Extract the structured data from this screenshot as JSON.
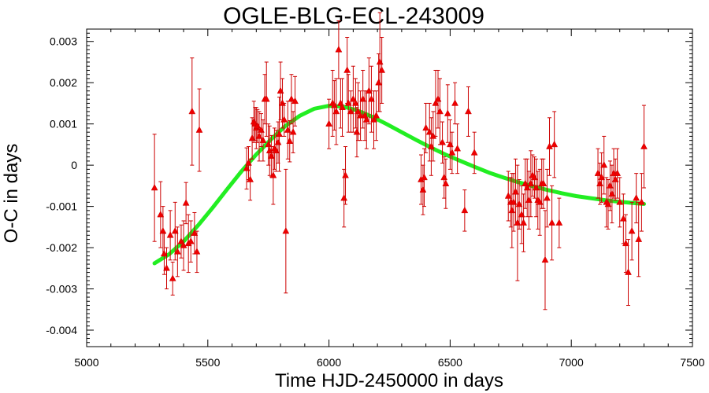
{
  "chart_data": {
    "type": "scatter",
    "title": "OGLE-BLG-ECL-243009",
    "xlabel": "Time HJD-2450000 in days",
    "ylabel": "O-C in days",
    "xlim": [
      5000,
      7500
    ],
    "ylim": [
      -0.0044,
      0.0033
    ],
    "x_ticks": [
      5000,
      5500,
      6000,
      6500,
      7000,
      7500
    ],
    "x_tick_labels": [
      "5000",
      "5500",
      "6000",
      "6500",
      "7000",
      "7500"
    ],
    "y_ticks": [
      0.003,
      0.002,
      0.001,
      0,
      -0.001,
      -0.002,
      -0.003,
      -0.004
    ],
    "y_tick_labels": [
      "0.003",
      "0.002",
      "0.001",
      "0",
      "-0.001",
      "-0.002",
      "-0.003",
      "-0.004"
    ],
    "grid": false,
    "colors": {
      "points": "#ee0000",
      "errorbars": "#cc0000",
      "fit": "#22ee22"
    },
    "series": [
      {
        "type": "scatter_with_errorbars",
        "x": [
          5280,
          5305,
          5315,
          5320,
          5330,
          5345,
          5355,
          5365,
          5375,
          5390,
          5400,
          5410,
          5420,
          5430,
          5435,
          5445,
          5455,
          5465,
          5660,
          5668,
          5675,
          5683,
          5690,
          5695,
          5700,
          5705,
          5712,
          5720,
          5728,
          5735,
          5742,
          5750,
          5755,
          5762,
          5770,
          5775,
          5782,
          5790,
          5795,
          5800,
          5808,
          5815,
          5822,
          5830,
          5838,
          5845,
          5852,
          5860,
          6000,
          6015,
          6022,
          6030,
          6040,
          6048,
          6055,
          6062,
          6068,
          6075,
          6080,
          6090,
          6100,
          6110,
          6115,
          6120,
          6130,
          6140,
          6148,
          6155,
          6165,
          6175,
          6185,
          6195,
          6205,
          6210,
          6218,
          6380,
          6388,
          6393,
          6400,
          6415,
          6422,
          6430,
          6440,
          6450,
          6458,
          6468,
          6475,
          6482,
          6490,
          6500,
          6508,
          6520,
          6530,
          6560,
          6575,
          6600,
          6740,
          6750,
          6755,
          6762,
          6770,
          6778,
          6785,
          6795,
          6803,
          6810,
          6818,
          6825,
          6833,
          6840,
          6848,
          6855,
          6862,
          6870,
          6878,
          6885,
          6892,
          6900,
          6910,
          6920,
          6930,
          6950,
          7110,
          7118,
          7125,
          7135,
          7145,
          7152,
          7160,
          7168,
          7175,
          7182,
          7190,
          7200,
          7215,
          7225,
          7235,
          7250,
          7268,
          7278,
          7290,
          7300
        ],
        "y": [
          -0.00055,
          -0.0012,
          -0.0016,
          -0.00215,
          -0.0025,
          -0.0017,
          -0.00275,
          -0.0016,
          -0.0021,
          -0.00185,
          -0.00195,
          -0.00092,
          -0.0019,
          -0.00185,
          0.0013,
          -0.00165,
          -0.0021,
          0.00085,
          -8e-05,
          5e-05,
          -0.00035,
          0.00065,
          0.00105,
          0.001,
          0.0009,
          0.00095,
          0.0007,
          0.00085,
          0.0006,
          0.0016,
          0.0016,
          0.0005,
          0.00035,
          0.00022,
          -0.00025,
          0.0004,
          0.00035,
          0.00055,
          0.00075,
          0.0018,
          0.0015,
          0.0011,
          -0.0016,
          0.00085,
          0.00058,
          0.0016,
          0.0008,
          0.00155,
          0.001,
          0.0015,
          0.00145,
          0.0013,
          0.0028,
          0.0015,
          0.0014,
          -0.0008,
          -0.00025,
          0.0023,
          0.0015,
          0.0013,
          0.0016,
          0.0015,
          0.0008,
          0.0013,
          0.0012,
          0.0016,
          0.0012,
          0.0011,
          0.0018,
          0.0016,
          0.0011,
          0.0012,
          0.002,
          0.0025,
          0.0023,
          -0.00035,
          -0.0006,
          -0.0003,
          0.0009,
          0.0008,
          0.00045,
          0.0007,
          0.0015,
          0.0016,
          0.0013,
          0.00055,
          -0.0003,
          -0.00045,
          0.00125,
          0.0005,
          0.0003,
          0.0015,
          0.0004,
          -0.0011,
          0.0013,
          0.0003,
          -0.00075,
          -0.0009,
          -0.0011,
          -0.0009,
          -0.00065,
          -0.0014,
          -0.00095,
          -0.0012,
          -0.0014,
          -0.00045,
          -0.00055,
          -0.00085,
          -0.00045,
          -0.00025,
          -0.0003,
          -0.00055,
          -0.00085,
          -0.0009,
          -0.00045,
          -0.00045,
          -0.0023,
          -0.0008,
          0.00045,
          -0.0014,
          0.0005,
          -0.0014,
          -0.0002,
          -0.00045,
          -0.0003,
          0,
          -0.0009,
          -0.00095,
          -0.0005,
          -0.0007,
          -0.0002,
          -0.00035,
          -0.0002,
          -0.0009,
          -0.0013,
          -0.0019,
          -0.0026,
          -0.0016,
          -0.0008,
          -0.0018,
          -0.0009,
          0.00045
        ],
        "err": [
          0.0013,
          0.0008,
          0.0006,
          0.0005,
          0.0005,
          0.0006,
          0.0004,
          0.0007,
          0.0006,
          0.0004,
          0.0006,
          0.0005,
          0.0007,
          0.0005,
          0.0013,
          0.0005,
          0.0005,
          0.001,
          0.0005,
          0.0004,
          0.0005,
          0.0005,
          0.0005,
          0.0004,
          0.0005,
          0.0004,
          0.0006,
          0.0004,
          0.0005,
          0.0006,
          0.0009,
          0.0005,
          0.0006,
          0.0005,
          0.0007,
          0.0005,
          0.0005,
          0.0005,
          0.0009,
          0.0007,
          0.0006,
          0.0004,
          0.0015,
          0.0007,
          0.0005,
          0.0006,
          0.0005,
          0.0006,
          0.0006,
          0.0008,
          0.0006,
          0.0008,
          0.0007,
          0.0006,
          0.0007,
          0.0007,
          0.0007,
          0.0008,
          0.0007,
          0.0005,
          0.0008,
          0.0006,
          0.0006,
          0.0007,
          0.0006,
          0.0007,
          0.0006,
          0.0007,
          0.0008,
          0.0008,
          0.0007,
          0.0006,
          0.0007,
          0.0012,
          0.0008,
          0.0006,
          0.0006,
          0.0007,
          0.0006,
          0.0007,
          0.0007,
          0.0006,
          0.0008,
          0.0007,
          0.0008,
          0.0005,
          0.0005,
          0.0006,
          0.0007,
          0.0006,
          0.0005,
          0.0005,
          0.0006,
          0.0005,
          0.0006,
          0.0005,
          0.0006,
          0.0006,
          0.0009,
          0.0007,
          0.0008,
          0.0014,
          0.0006,
          0.0007,
          0.0007,
          0.0006,
          0.0007,
          0.0007,
          0.0008,
          0.0005,
          0.0005,
          0.0007,
          0.0007,
          0.0008,
          0.0006,
          0.0006,
          0.0012,
          0.0007,
          0.0007,
          0.0009,
          0.0008,
          0.0006,
          0.0006,
          0.0005,
          0.0006,
          0.0007,
          0.0006,
          0.0006,
          0.0006,
          0.0007,
          0.0006,
          0.0005,
          0.0006,
          0.0006,
          0.0006,
          0.0007,
          0.0008,
          0.0007,
          0.0006,
          0.0009,
          0.0007,
          0.001
        ]
      },
      {
        "type": "line",
        "x": [
          5280,
          5340,
          5400,
          5460,
          5520,
          5580,
          5640,
          5700,
          5760,
          5820,
          5880,
          5940,
          6000,
          6060,
          6120,
          6180,
          6240,
          6300,
          6360,
          6420,
          6480,
          6540,
          6600,
          6660,
          6720,
          6780,
          6840,
          6900,
          6960,
          7020,
          7080,
          7140,
          7200,
          7260,
          7300
        ],
        "y": [
          -0.00238,
          -0.00216,
          -0.00185,
          -0.00146,
          -0.00103,
          -0.00058,
          -0.00014,
          0.00026,
          0.00062,
          0.00095,
          0.0012,
          0.00137,
          0.00144,
          0.00142,
          0.00132,
          0.00117,
          0.00099,
          0.0008,
          0.00061,
          0.00043,
          0.00026,
          0.00011,
          -4e-05,
          -0.00018,
          -0.0003,
          -0.00041,
          -0.00051,
          -0.0006,
          -0.00068,
          -0.00075,
          -0.0008,
          -0.00085,
          -0.00089,
          -0.00092,
          -0.00094
        ]
      }
    ]
  }
}
